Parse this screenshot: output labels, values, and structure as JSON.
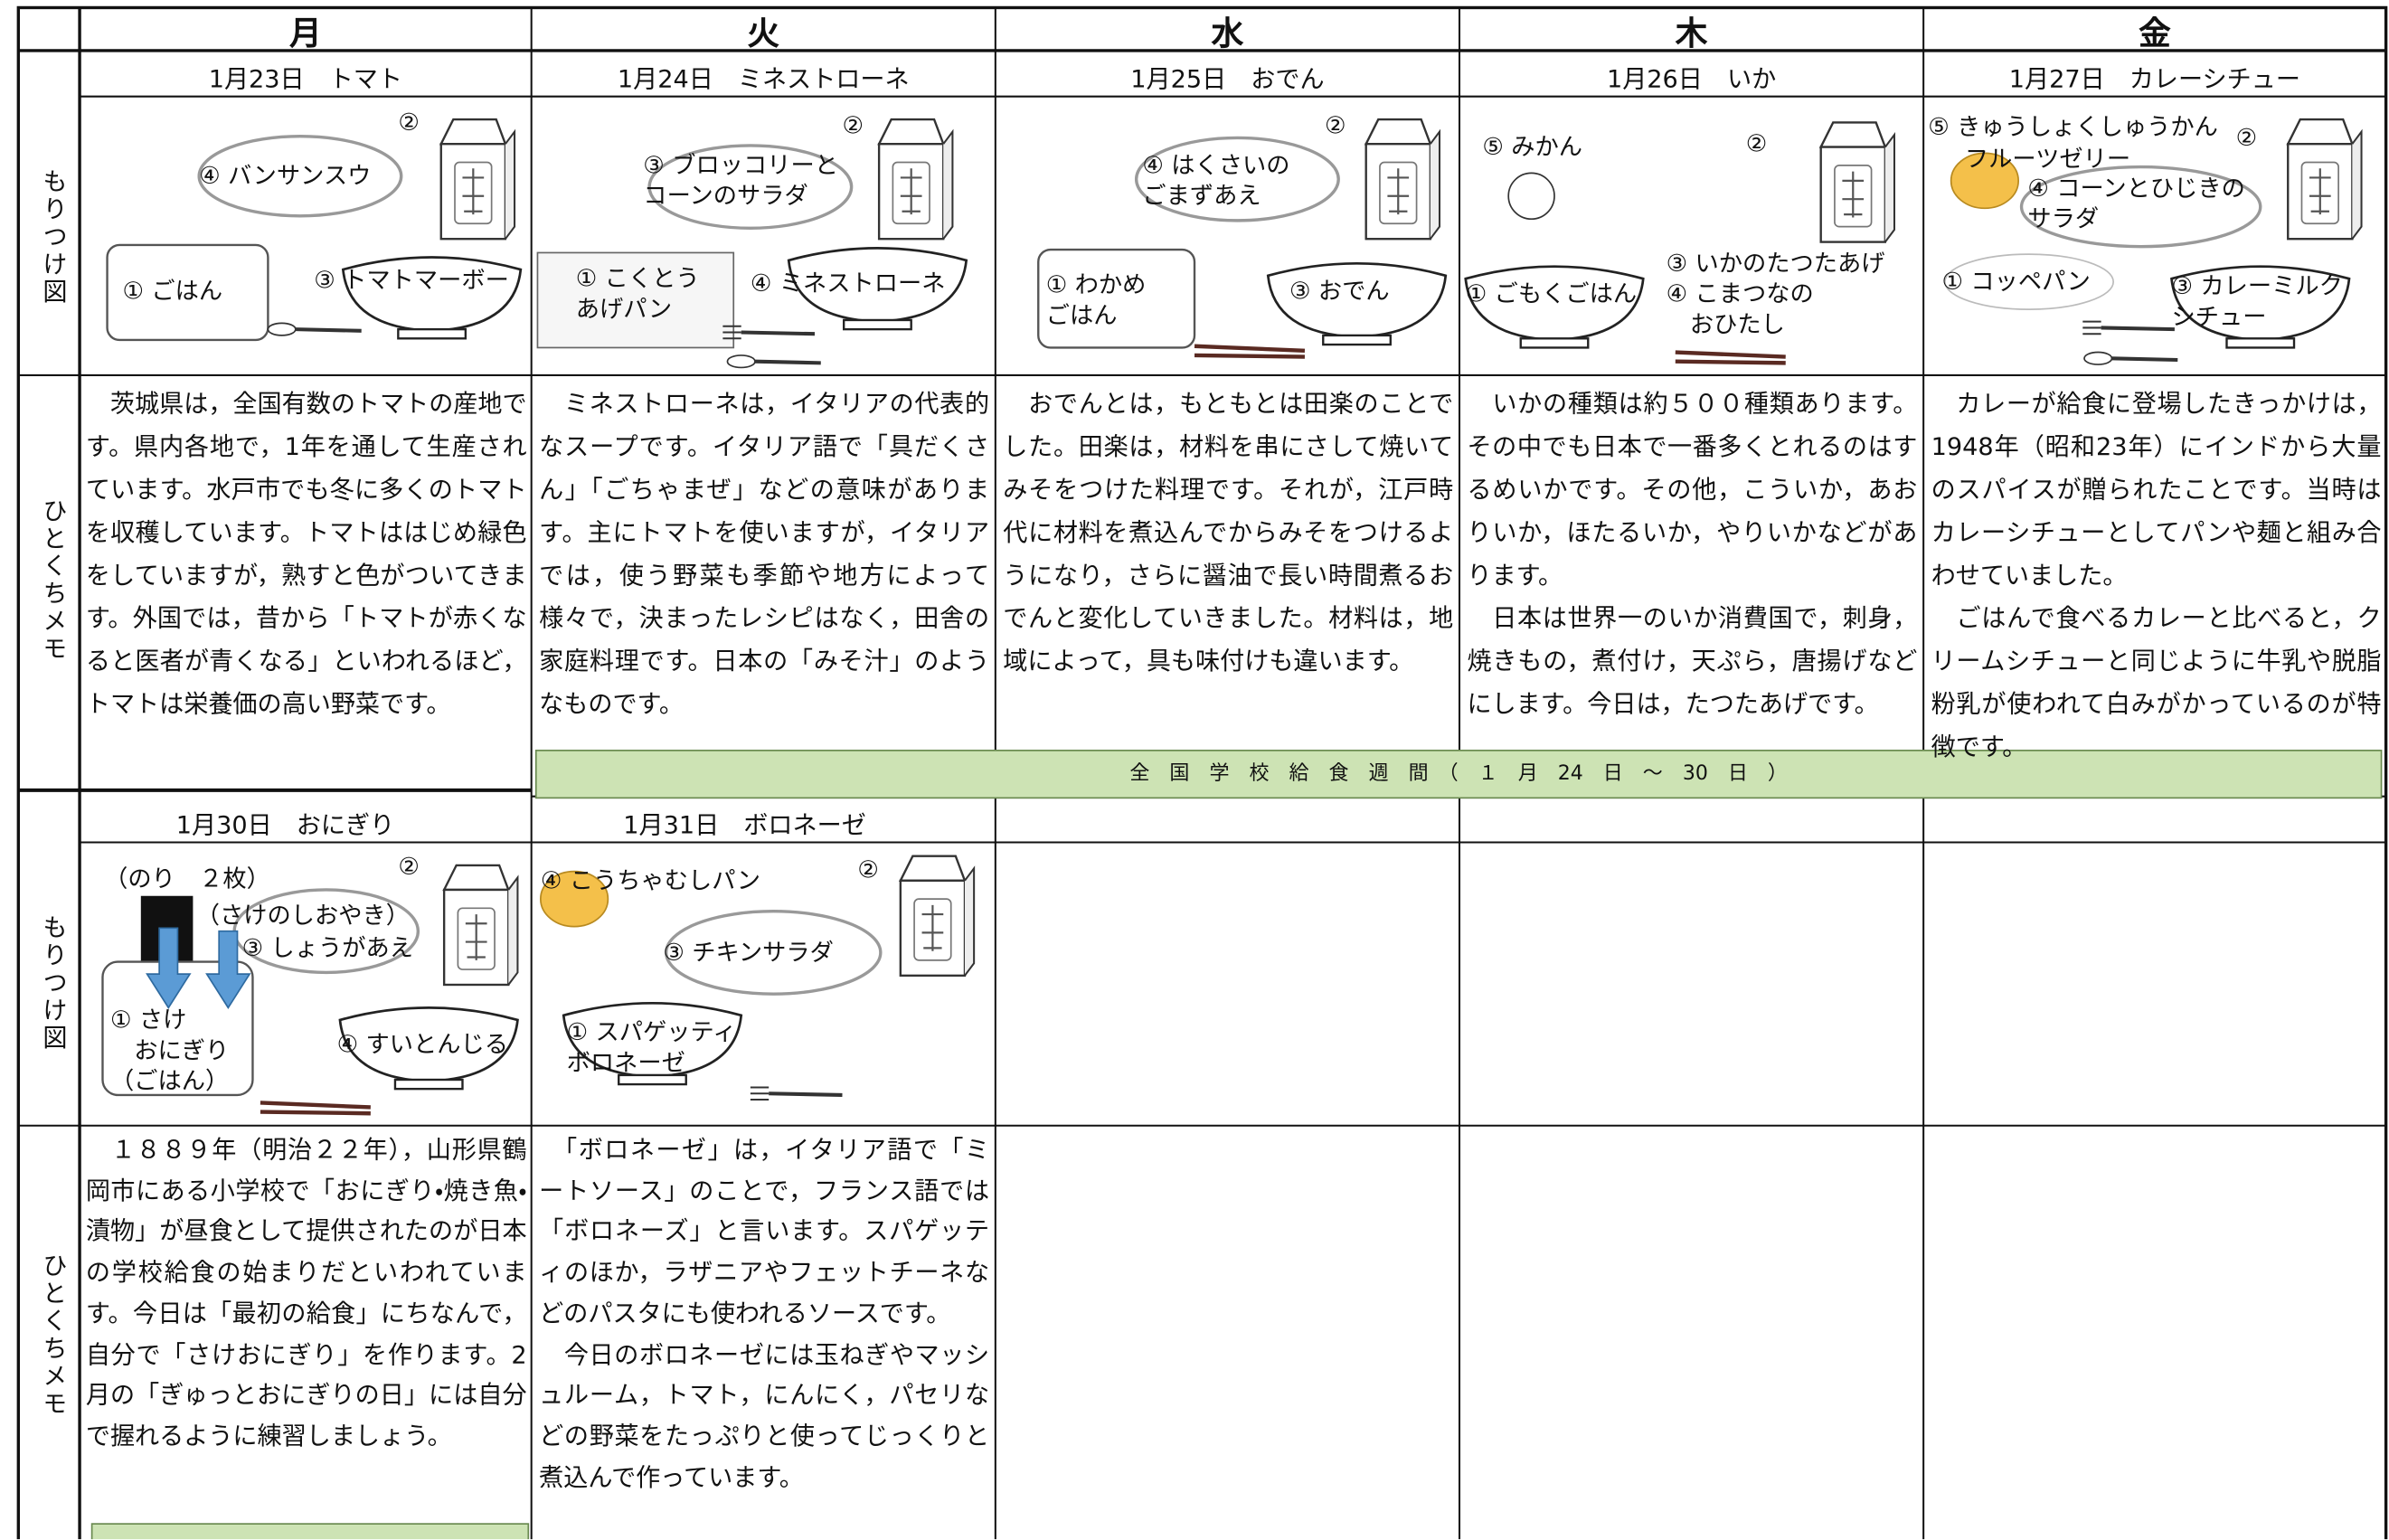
{
  "days": [
    "月",
    "火",
    "水",
    "木",
    "金"
  ],
  "row_labels": {
    "moritsuke": "もりつけ図",
    "memo": "ひとくちメモ"
  },
  "week1": [
    {
      "date": "1月23日　トマト",
      "items": [
        "②",
        "④ バンサンスウ",
        "① ごはん",
        "③ トマトマーボー"
      ],
      "memo": [
        "　茨城県は，全国有数のトマトの産地です。県内各地で，1年を通して生産されています。水戸市でも冬に多くのトマトを収穫しています。トマトははじめ緑色をしていますが，熟すと色がついてきます。外国では，昔から「トマトが赤くなると医者が青くなる」といわれるほど，トマトは栄養価の高い野菜です。"
      ]
    },
    {
      "date": "1月24日　ミネストローネ",
      "items": [
        "②",
        "③ ブロッコリーと\nコーンのサラダ",
        "① こくとう\nあげパン",
        "④ ミネストローネ"
      ],
      "memo": [
        "　ミネストローネは，イタリアの代表的なスープです。イタリア語で「具だくさん」「ごちゃまぜ」などの意味があります。主にトマトを使いますが，イタリアでは，使う野菜も季節や地方によって様々で，決まったレシピはなく，田舎の家庭料理です。日本の「みそ汁」のようなものです。"
      ]
    },
    {
      "date": "1月25日　おでん",
      "items": [
        "②",
        "④ はくさいの\nごまずあえ",
        "① わかめ\nごはん",
        "③ おでん"
      ],
      "memo": [
        "　おでんとは，もともとは田楽のことでした。田楽は，材料を串にさして焼いてみそをつけた料理です。それが，江戸時代に材料を煮込んでからみそをつけるようになり，さらに醤油で長い時間煮るおでんと変化していきました。材料は，地域によって，具も味付けも違います。"
      ]
    },
    {
      "date": "1月26日　いか",
      "items": [
        "⑤ みかん",
        "②",
        "① ごもくごはん",
        "③ いかのたつたあげ\n④ こまつなの\n　おひたし"
      ],
      "memo": [
        "　いかの種類は約５００種類あります。その中でも日本で一番多くとれるのはするめいかです。その他，こういか，あおりいか，ほたるいか，やりいかなどがあります。",
        "　日本は世界一のいか消費国で，刺身，焼きもの，煮付け，天ぷら，唐揚げなどにします。今日は，たつたあげです。"
      ]
    },
    {
      "date": "1月27日　カレーシチュー",
      "items": [
        "⑤ きゅうしょくしゅうかん",
        "②",
        "フルーツゼリー",
        "④ コーンとひじきの\nサラダ",
        "① コッペパン",
        "③ カレーミルク\nシチュー"
      ],
      "memo": [
        "　カレーが給食に登場したきっかけは，1948年（昭和23年）にインドから大量のスパイスが贈られたことです。当時はカレーシチューとしてパンや麺と組み合わせていました。",
        "　ごはんで食べるカレーと比べると，クリームシチューと同じように牛乳や脱脂粉乳が使われて白みがかっているのが特徴です。"
      ]
    }
  ],
  "banner": "全　国　学　校　給　食　週　間　（　１　月　24　日　～　30　日　）",
  "week2": [
    {
      "date": "1月30日　おにぎり",
      "items": [
        "（のり　２枚）",
        "（さけのしおやき）",
        "③ しょうがあえ",
        "②",
        "① さけ\n　おにぎり\n（ごはん）",
        "④ すいとんじる"
      ],
      "memo": [
        "　１８８９年（明治２２年），山形県鶴岡市にある小学校で「おにぎり・焼き魚・漬物」が昼食として提供されたのが日本の学校給食の始まりだといわれています。今日は「最初の給食」にちなんで，自分で「さけおにぎり」を作ります。2月の「ぎゅっとおにぎりの日」には自分で握れるように練習しましょう。"
      ]
    },
    {
      "date": "1月31日　ボロネーゼ",
      "items": [
        "④ こうちゃむしパン",
        "②",
        "③ チキンサラダ",
        "① スパゲッティ\nボロネーゼ"
      ],
      "memo": [
        "　「ボロネーゼ」は，イタリア語で「ミートソース」のことで，フランス語では「ボロネーズ」と言います。スパゲッティのほか，ラザニアやフェットチーネなどのパスタにも使われるソースです。",
        "　今日のボロネーゼには玉ねぎやマッシュルーム，トマト，にんにく，パセリなどの野菜をたっぷりと使ってじっくりと煮込んで作っています。"
      ]
    }
  ]
}
